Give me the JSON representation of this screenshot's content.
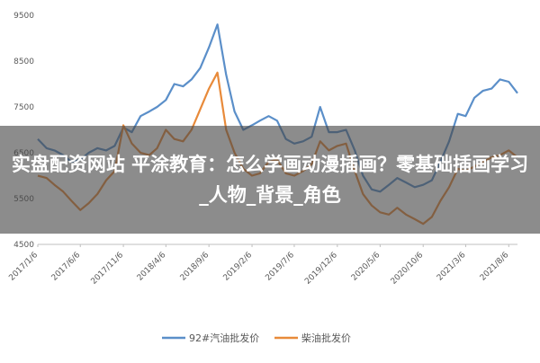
{
  "overlay": {
    "title": "实盘配资网站 平涂教育：怎么学画动漫插画？零基础插画学习_人物_背景_角色"
  },
  "chart_data": {
    "type": "line",
    "ylim": [
      4500,
      9500
    ],
    "yticks": [
      4500,
      5500,
      6500,
      7500,
      8500,
      9500
    ],
    "x_ticks": [
      "2017/1/6",
      "2017/6/6",
      "2017/11/6",
      "2018/4/6",
      "2018/9/6",
      "2019/2/6",
      "2019/7/6",
      "2019/12/6",
      "2020/5/6",
      "2020/10/6",
      "2021/3/6",
      "2021/8/6"
    ],
    "x_range": [
      "2017-01-06",
      "2021-09-06"
    ],
    "legend_position": "bottom",
    "grid": false,
    "series": [
      {
        "name": "92#汽油批发价",
        "color": "#5b8fc9",
        "points": [
          [
            "2017-01-06",
            6800
          ],
          [
            "2017-02-06",
            6600
          ],
          [
            "2017-03-06",
            6550
          ],
          [
            "2017-04-06",
            6450
          ],
          [
            "2017-05-06",
            6300
          ],
          [
            "2017-06-06",
            6350
          ],
          [
            "2017-07-06",
            6500
          ],
          [
            "2017-08-06",
            6600
          ],
          [
            "2017-09-06",
            6550
          ],
          [
            "2017-10-06",
            6650
          ],
          [
            "2017-11-06",
            7050
          ],
          [
            "2017-12-06",
            6950
          ],
          [
            "2018-01-06",
            7300
          ],
          [
            "2018-02-06",
            7400
          ],
          [
            "2018-03-06",
            7500
          ],
          [
            "2018-04-06",
            7650
          ],
          [
            "2018-05-06",
            8000
          ],
          [
            "2018-06-06",
            7950
          ],
          [
            "2018-07-06",
            8100
          ],
          [
            "2018-08-06",
            8350
          ],
          [
            "2018-09-06",
            8800
          ],
          [
            "2018-10-06",
            9300
          ],
          [
            "2018-11-06",
            8200
          ],
          [
            "2018-12-06",
            7400
          ],
          [
            "2019-01-06",
            7000
          ],
          [
            "2019-02-06",
            7100
          ],
          [
            "2019-03-06",
            7200
          ],
          [
            "2019-04-06",
            7300
          ],
          [
            "2019-05-06",
            7200
          ],
          [
            "2019-06-06",
            6800
          ],
          [
            "2019-07-06",
            6700
          ],
          [
            "2019-08-06",
            6750
          ],
          [
            "2019-09-06",
            6850
          ],
          [
            "2019-10-06",
            7500
          ],
          [
            "2019-11-06",
            6950
          ],
          [
            "2019-12-06",
            6950
          ],
          [
            "2020-01-06",
            7000
          ],
          [
            "2020-02-06",
            6550
          ],
          [
            "2020-03-06",
            6000
          ],
          [
            "2020-04-06",
            5700
          ],
          [
            "2020-05-06",
            5650
          ],
          [
            "2020-06-06",
            5800
          ],
          [
            "2020-07-06",
            5950
          ],
          [
            "2020-08-06",
            5850
          ],
          [
            "2020-09-06",
            5750
          ],
          [
            "2020-10-06",
            5800
          ],
          [
            "2020-11-06",
            5900
          ],
          [
            "2020-12-06",
            6300
          ],
          [
            "2021-01-06",
            6750
          ],
          [
            "2021-02-06",
            7350
          ],
          [
            "2021-03-06",
            7300
          ],
          [
            "2021-04-06",
            7700
          ],
          [
            "2021-05-06",
            7850
          ],
          [
            "2021-06-06",
            7900
          ],
          [
            "2021-07-06",
            8100
          ],
          [
            "2021-08-06",
            8050
          ],
          [
            "2021-09-06",
            7800
          ]
        ]
      },
      {
        "name": "柴油批发价",
        "color": "#e88a3a",
        "points": [
          [
            "2017-01-06",
            6000
          ],
          [
            "2017-02-06",
            5950
          ],
          [
            "2017-03-06",
            5800
          ],
          [
            "2017-04-06",
            5650
          ],
          [
            "2017-05-06",
            5450
          ],
          [
            "2017-06-06",
            5250
          ],
          [
            "2017-07-06",
            5400
          ],
          [
            "2017-08-06",
            5600
          ],
          [
            "2017-09-06",
            5900
          ],
          [
            "2017-10-06",
            6100
          ],
          [
            "2017-11-06",
            7100
          ],
          [
            "2017-12-06",
            6700
          ],
          [
            "2018-01-06",
            6500
          ],
          [
            "2018-02-06",
            6450
          ],
          [
            "2018-03-06",
            6600
          ],
          [
            "2018-04-06",
            7000
          ],
          [
            "2018-05-06",
            6800
          ],
          [
            "2018-06-06",
            6750
          ],
          [
            "2018-07-06",
            7000
          ],
          [
            "2018-08-06",
            7450
          ],
          [
            "2018-09-06",
            7900
          ],
          [
            "2018-10-06",
            8250
          ],
          [
            "2018-11-06",
            7000
          ],
          [
            "2018-12-06",
            6500
          ],
          [
            "2019-01-06",
            6150
          ],
          [
            "2019-02-06",
            6000
          ],
          [
            "2019-03-06",
            6050
          ],
          [
            "2019-04-06",
            6300
          ],
          [
            "2019-05-06",
            6350
          ],
          [
            "2019-06-06",
            6050
          ],
          [
            "2019-07-06",
            6000
          ],
          [
            "2019-08-06",
            6100
          ],
          [
            "2019-09-06",
            6250
          ],
          [
            "2019-10-06",
            6750
          ],
          [
            "2019-11-06",
            6550
          ],
          [
            "2019-12-06",
            6650
          ],
          [
            "2020-01-06",
            6700
          ],
          [
            "2020-02-06",
            6100
          ],
          [
            "2020-03-06",
            5600
          ],
          [
            "2020-04-06",
            5350
          ],
          [
            "2020-05-06",
            5200
          ],
          [
            "2020-06-06",
            5150
          ],
          [
            "2020-07-06",
            5300
          ],
          [
            "2020-08-06",
            5150
          ],
          [
            "2020-09-06",
            5050
          ],
          [
            "2020-10-06",
            4950
          ],
          [
            "2020-11-06",
            5100
          ],
          [
            "2020-12-06",
            5450
          ],
          [
            "2021-01-06",
            5750
          ],
          [
            "2021-02-06",
            6150
          ],
          [
            "2021-03-06",
            6100
          ],
          [
            "2021-04-06",
            6200
          ],
          [
            "2021-05-06",
            6300
          ],
          [
            "2021-06-06",
            6400
          ],
          [
            "2021-07-06",
            6450
          ],
          [
            "2021-08-06",
            6550
          ],
          [
            "2021-09-06",
            6400
          ]
        ]
      }
    ]
  }
}
